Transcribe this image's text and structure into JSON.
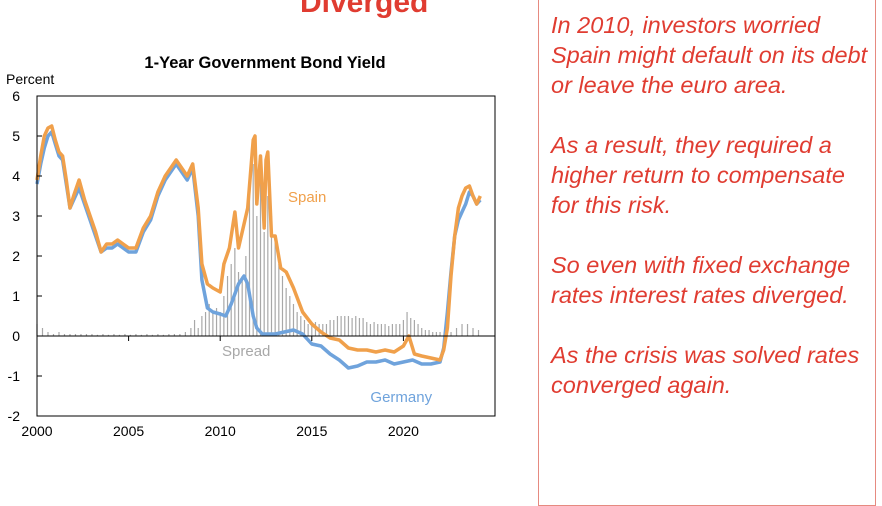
{
  "top_band_text": "Diverged",
  "notes": [
    "In 2010, investors worried Spain might default on its debt or leave the euro area.",
    "As a result, they required a higher return to compensate for this risk.",
    "So even with fixed exchange rates interest rates diverged.",
    "As the crisis was solved rates converged again."
  ],
  "colors": {
    "spain": "#f0a04b",
    "germany": "#6fa3dc",
    "spread": "#a8a8a8",
    "notes": "#e03c31"
  },
  "chart_data": {
    "type": "line",
    "title": "1-Year Government Bond Yield",
    "ylabel": "Percent",
    "xlabel": "",
    "xlim": [
      2000,
      2025
    ],
    "ylim": [
      -2,
      6
    ],
    "xticks": [
      2000,
      2005,
      2010,
      2015,
      2020
    ],
    "yticks": [
      -2,
      -1,
      0,
      1,
      2,
      3,
      4,
      5,
      6
    ],
    "grid": false,
    "annotations": [
      {
        "text": "Spain",
        "x": 2013.7,
        "y": 3.35,
        "color": "#f0a04b"
      },
      {
        "text": "Spread",
        "x": 2010.1,
        "y": -0.5,
        "color": "#a8a8a8"
      },
      {
        "text": "Germany",
        "x": 2018.2,
        "y": -1.65,
        "color": "#6fa3dc"
      }
    ],
    "series": [
      {
        "name": "Germany",
        "style": "line",
        "x": [
          2000,
          2000.2,
          2000.4,
          2000.6,
          2000.8,
          2001,
          2001.2,
          2001.4,
          2001.6,
          2001.8,
          2002,
          2002.3,
          2002.6,
          2002.9,
          2003.2,
          2003.5,
          2003.8,
          2004.1,
          2004.4,
          2004.7,
          2005,
          2005.4,
          2005.8,
          2006.2,
          2006.6,
          2007,
          2007.3,
          2007.6,
          2007.9,
          2008.2,
          2008.5,
          2008.8,
          2009,
          2009.3,
          2009.6,
          2010,
          2010.3,
          2010.6,
          2011,
          2011.3,
          2011.5,
          2011.8,
          2012,
          2012.3,
          2012.6,
          2013,
          2013.5,
          2014,
          2014.5,
          2015,
          2015.5,
          2016,
          2016.5,
          2017,
          2017.5,
          2018,
          2018.5,
          2019,
          2019.5,
          2020,
          2020.5,
          2021,
          2021.5,
          2022,
          2022.2,
          2022.4,
          2022.6,
          2022.8,
          2023,
          2023.2,
          2023.4,
          2023.6,
          2023.8,
          2024,
          2024.2
        ],
        "y": [
          3.8,
          4.3,
          4.7,
          5.0,
          5.1,
          4.8,
          4.5,
          4.4,
          3.8,
          3.2,
          3.4,
          3.7,
          3.3,
          2.9,
          2.5,
          2.1,
          2.2,
          2.2,
          2.3,
          2.2,
          2.1,
          2.1,
          2.6,
          2.9,
          3.5,
          3.9,
          4.1,
          4.3,
          4.1,
          3.9,
          4.2,
          3.0,
          1.4,
          0.7,
          0.6,
          0.55,
          0.5,
          0.8,
          1.3,
          1.5,
          1.3,
          0.5,
          0.2,
          0.05,
          0.05,
          0.05,
          0.1,
          0.15,
          0.05,
          -0.2,
          -0.25,
          -0.45,
          -0.6,
          -0.8,
          -0.75,
          -0.65,
          -0.65,
          -0.6,
          -0.7,
          -0.65,
          -0.6,
          -0.7,
          -0.7,
          -0.65,
          -0.3,
          0.6,
          1.6,
          2.5,
          2.9,
          3.1,
          3.3,
          3.6,
          3.5,
          3.3,
          3.4
        ]
      },
      {
        "name": "Spain",
        "style": "line",
        "x": [
          2000,
          2000.2,
          2000.4,
          2000.6,
          2000.8,
          2001,
          2001.2,
          2001.4,
          2001.6,
          2001.8,
          2002,
          2002.3,
          2002.6,
          2002.9,
          2003.2,
          2003.5,
          2003.8,
          2004.1,
          2004.4,
          2004.7,
          2005,
          2005.4,
          2005.8,
          2006.2,
          2006.6,
          2007,
          2007.3,
          2007.6,
          2007.9,
          2008.2,
          2008.5,
          2008.8,
          2009,
          2009.3,
          2009.6,
          2010,
          2010.2,
          2010.5,
          2010.8,
          2011,
          2011.2,
          2011.5,
          2011.8,
          2011.9,
          2012,
          2012.2,
          2012.4,
          2012.5,
          2012.6,
          2012.8,
          2013,
          2013.3,
          2013.6,
          2014,
          2014.5,
          2015,
          2015.5,
          2016,
          2016.5,
          2017,
          2017.5,
          2018,
          2018.5,
          2019,
          2019.5,
          2020,
          2020.3,
          2020.6,
          2021,
          2021.5,
          2022,
          2022.2,
          2022.4,
          2022.6,
          2022.8,
          2023,
          2023.2,
          2023.4,
          2023.6,
          2023.8,
          2024,
          2024.2
        ],
        "y": [
          3.9,
          4.5,
          5.0,
          5.2,
          5.25,
          4.9,
          4.6,
          4.5,
          3.9,
          3.2,
          3.5,
          3.9,
          3.4,
          3.0,
          2.6,
          2.1,
          2.3,
          2.3,
          2.4,
          2.3,
          2.2,
          2.2,
          2.7,
          3.0,
          3.6,
          4.0,
          4.2,
          4.4,
          4.2,
          4.0,
          4.3,
          3.2,
          1.8,
          1.3,
          1.2,
          1.1,
          1.8,
          2.2,
          3.1,
          2.2,
          2.6,
          3.2,
          4.9,
          5.0,
          3.3,
          4.5,
          2.7,
          4.4,
          4.6,
          2.5,
          2.5,
          1.7,
          1.6,
          1.2,
          0.6,
          0.3,
          0.1,
          -0.05,
          -0.1,
          -0.3,
          -0.35,
          -0.35,
          -0.4,
          -0.35,
          -0.4,
          -0.25,
          0.0,
          -0.45,
          -0.5,
          -0.55,
          -0.6,
          -0.35,
          0.2,
          1.5,
          2.5,
          3.2,
          3.5,
          3.7,
          3.75,
          3.5,
          3.3,
          3.5
        ]
      },
      {
        "name": "Spread",
        "style": "bars",
        "x": [
          2000,
          2000.3,
          2000.6,
          2000.9,
          2001.2,
          2001.5,
          2001.8,
          2002.1,
          2002.4,
          2002.7,
          2003,
          2003.3,
          2003.6,
          2003.9,
          2004.2,
          2004.5,
          2004.8,
          2005.1,
          2005.4,
          2005.7,
          2006,
          2006.3,
          2006.6,
          2006.9,
          2007.2,
          2007.5,
          2007.8,
          2008.1,
          2008.4,
          2008.6,
          2008.8,
          2009,
          2009.2,
          2009.4,
          2009.6,
          2009.8,
          2010,
          2010.2,
          2010.4,
          2010.6,
          2010.8,
          2011,
          2011.2,
          2011.4,
          2011.6,
          2011.8,
          2012,
          2012.2,
          2012.4,
          2012.6,
          2012.8,
          2013,
          2013.2,
          2013.4,
          2013.6,
          2013.8,
          2014,
          2014.2,
          2014.4,
          2014.6,
          2014.8,
          2015,
          2015.2,
          2015.4,
          2015.6,
          2015.8,
          2016,
          2016.2,
          2016.4,
          2016.6,
          2016.8,
          2017,
          2017.2,
          2017.4,
          2017.6,
          2017.8,
          2018,
          2018.2,
          2018.4,
          2018.6,
          2018.8,
          2019,
          2019.2,
          2019.4,
          2019.6,
          2019.8,
          2020,
          2020.2,
          2020.4,
          2020.6,
          2020.8,
          2021,
          2021.2,
          2021.4,
          2021.6,
          2021.8,
          2022,
          2022.3,
          2022.6,
          2022.9,
          2023.2,
          2023.5,
          2023.8,
          2024.1
        ],
        "y": [
          0.3,
          0.2,
          0.1,
          0.05,
          0.1,
          0.05,
          0.05,
          0.05,
          0.05,
          0.05,
          0.05,
          0.03,
          0.05,
          0.03,
          0.05,
          0.03,
          0.05,
          0.03,
          0.05,
          0.03,
          0.05,
          0.03,
          0.05,
          0.03,
          0.05,
          0.05,
          0.05,
          0.1,
          0.2,
          0.4,
          0.2,
          0.5,
          0.6,
          0.8,
          0.6,
          0.7,
          0.6,
          1.0,
          1.5,
          1.8,
          2.2,
          1.6,
          1.5,
          2.0,
          3.5,
          4.3,
          3.0,
          4.0,
          2.6,
          3.5,
          3.0,
          2.4,
          1.8,
          1.5,
          1.2,
          1.0,
          0.8,
          0.6,
          0.5,
          0.4,
          0.3,
          0.3,
          0.35,
          0.3,
          0.3,
          0.3,
          0.4,
          0.4,
          0.5,
          0.5,
          0.5,
          0.5,
          0.45,
          0.5,
          0.45,
          0.45,
          0.35,
          0.3,
          0.35,
          0.3,
          0.3,
          0.3,
          0.25,
          0.3,
          0.3,
          0.3,
          0.4,
          0.6,
          0.45,
          0.4,
          0.3,
          0.2,
          0.15,
          0.15,
          0.1,
          0.1,
          0.1,
          0.1,
          0.1,
          0.2,
          0.3,
          0.3,
          0.2,
          0.15
        ]
      }
    ]
  }
}
